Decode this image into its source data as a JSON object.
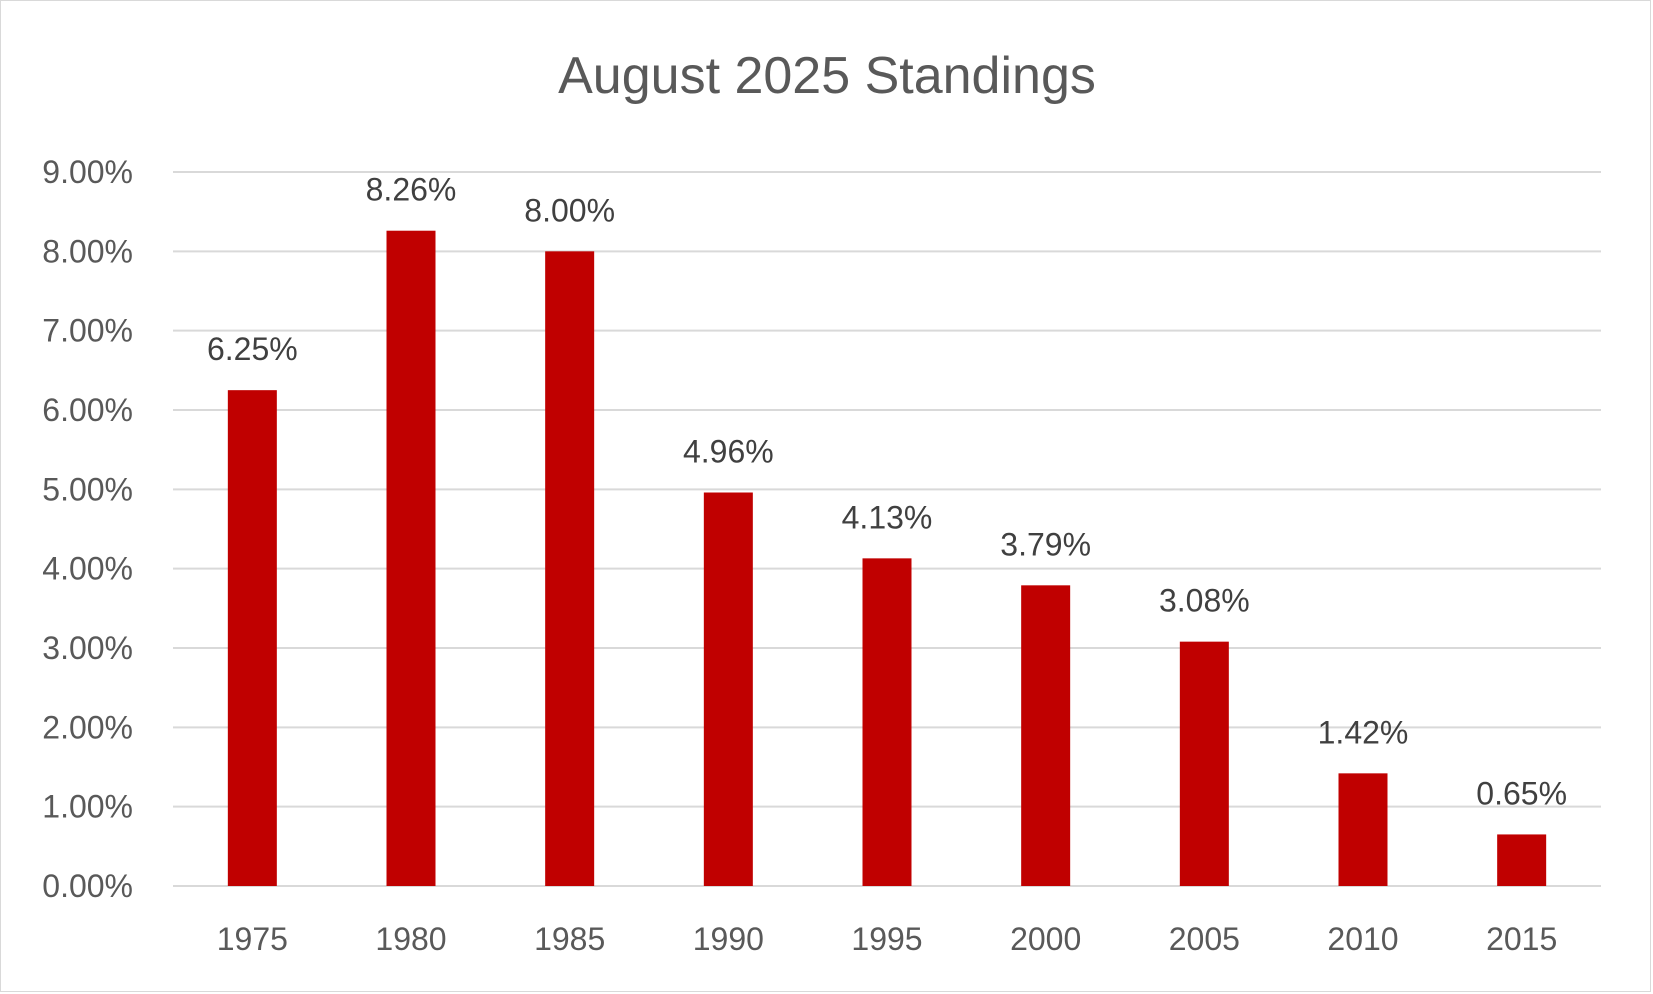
{
  "chart_data": {
    "type": "bar",
    "title": "August 2025 Standings",
    "xlabel": "",
    "ylabel": "",
    "categories": [
      "1975",
      "1980",
      "1985",
      "1990",
      "1995",
      "2000",
      "2005",
      "2010",
      "2015"
    ],
    "values": [
      6.25,
      8.26,
      8.0,
      4.96,
      4.13,
      3.79,
      3.08,
      1.42,
      0.65
    ],
    "data_labels": [
      "6.25%",
      "8.26%",
      "8.00%",
      "4.96%",
      "4.13%",
      "3.79%",
      "3.08%",
      "1.42%",
      "0.65%"
    ],
    "ylim": [
      0,
      9
    ],
    "yticks": [
      0,
      1,
      2,
      3,
      4,
      5,
      6,
      7,
      8,
      9
    ],
    "ytick_labels": [
      "0.00%",
      "1.00%",
      "2.00%",
      "3.00%",
      "4.00%",
      "5.00%",
      "6.00%",
      "7.00%",
      "8.00%",
      "9.00%"
    ],
    "grid": true,
    "legend": "none",
    "colors": {
      "bar": "#c00000",
      "grid": "#d9d9d9",
      "text": "#595959",
      "data_label": "#404040"
    }
  }
}
